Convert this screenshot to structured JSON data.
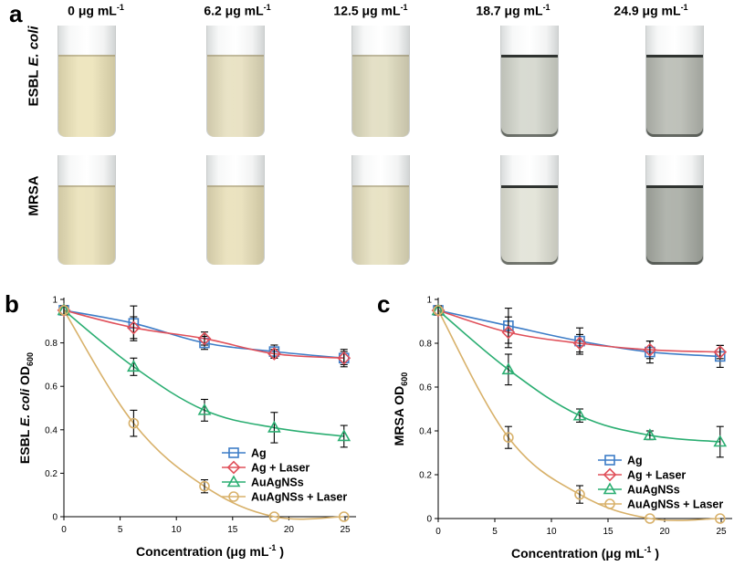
{
  "panel_labels": {
    "a": "a",
    "b": "b",
    "c": "c"
  },
  "photo": {
    "concentrations": [
      {
        "value": "0 μg mL",
        "exp": "-1"
      },
      {
        "value": "6.2 μg mL",
        "exp": "-1"
      },
      {
        "value": "12.5 μg mL",
        "exp": "-1"
      },
      {
        "value": "18.7 μg mL",
        "exp": "-1"
      },
      {
        "value": "24.9 μg mL",
        "exp": "-1"
      }
    ],
    "row_labels": {
      "ecoli_prefix": "ESBL ",
      "ecoli_italic": "E. coli",
      "mrsa": "MRSA"
    },
    "liquid_colors": {
      "ecoli": [
        "#ece3b8",
        "#e6dfbe",
        "#e0dcbf",
        "#d3d6cc",
        "#b7bab2"
      ],
      "mrsa": [
        "#e9e0b7",
        "#e8dfb8",
        "#e5dfbe",
        "#e1e2d6",
        "#a7aba3"
      ]
    }
  },
  "chart_data": [
    {
      "type": "line",
      "panel": "b",
      "xlabel": "Concentration (μg mL",
      "xlabel_exp": "-1",
      "xlabel_end": " )",
      "ylabel_prefix": "ESBL ",
      "ylabel_italic": "E. coli",
      "ylabel_main": " OD",
      "ylabel_sub": "600",
      "xlim": [
        0,
        25
      ],
      "ylim": [
        0,
        1
      ],
      "xticks": [
        "0",
        "5",
        "10",
        "15",
        "20",
        "25"
      ],
      "yticks": [
        "0",
        "0.2",
        "0.4",
        "0.6",
        "0.8",
        "1"
      ],
      "legend_position": "bottom-right",
      "x": [
        0,
        6.2,
        12.5,
        18.7,
        24.9
      ],
      "series": [
        {
          "name": "Ag",
          "marker": "square",
          "color": "#3d7dc7",
          "values": [
            0.95,
            0.89,
            0.8,
            0.76,
            0.73
          ],
          "errors": [
            0.02,
            0.08,
            0.03,
            0.03,
            0.04
          ]
        },
        {
          "name": "Ag + Laser",
          "marker": "diamond",
          "color": "#e0505a",
          "values": [
            0.95,
            0.87,
            0.82,
            0.75,
            0.73
          ],
          "errors": [
            0.02,
            0.05,
            0.03,
            0.02,
            0.03
          ]
        },
        {
          "name": "AuAgNSs",
          "marker": "triangle",
          "color": "#2bae72",
          "values": [
            0.95,
            0.69,
            0.49,
            0.41,
            0.37
          ],
          "errors": [
            0.02,
            0.04,
            0.05,
            0.07,
            0.05
          ]
        },
        {
          "name": "AuAgNSs + Laser",
          "marker": "circle",
          "color": "#d8b16a",
          "values": [
            0.95,
            0.43,
            0.14,
            0.0,
            0.0
          ],
          "errors": [
            0.02,
            0.06,
            0.03,
            0.0,
            0.0
          ]
        }
      ]
    },
    {
      "type": "line",
      "panel": "c",
      "xlabel": "Concentration (μg mL",
      "xlabel_exp": "-1",
      "xlabel_end": " )",
      "ylabel_prefix": "",
      "ylabel_italic": "",
      "ylabel_main": "MRSA OD",
      "ylabel_sub": "600",
      "xlim": [
        0,
        25
      ],
      "ylim": [
        0,
        1
      ],
      "xticks": [
        "0",
        "5",
        "10",
        "15",
        "20",
        "25"
      ],
      "yticks": [
        "0",
        "0.2",
        "0.4",
        "0.6",
        "0.8",
        "1"
      ],
      "legend_position": "bottom-right",
      "x": [
        0,
        6.2,
        12.5,
        18.7,
        24.9
      ],
      "series": [
        {
          "name": "Ag",
          "marker": "square",
          "color": "#3d7dc7",
          "values": [
            0.95,
            0.88,
            0.81,
            0.76,
            0.74
          ],
          "errors": [
            0.02,
            0.08,
            0.06,
            0.05,
            0.05
          ]
        },
        {
          "name": "Ag + Laser",
          "marker": "diamond",
          "color": "#e0505a",
          "values": [
            0.95,
            0.85,
            0.8,
            0.77,
            0.76
          ],
          "errors": [
            0.02,
            0.07,
            0.04,
            0.04,
            0.03
          ]
        },
        {
          "name": "AuAgNSs",
          "marker": "triangle",
          "color": "#2bae72",
          "values": [
            0.95,
            0.68,
            0.47,
            0.38,
            0.35
          ],
          "errors": [
            0.02,
            0.07,
            0.03,
            0.02,
            0.07
          ]
        },
        {
          "name": "AuAgNSs + Laser",
          "marker": "circle",
          "color": "#d8b16a",
          "values": [
            0.95,
            0.37,
            0.11,
            0.0,
            0.0
          ],
          "errors": [
            0.02,
            0.05,
            0.04,
            0.0,
            0.0
          ]
        }
      ]
    }
  ]
}
